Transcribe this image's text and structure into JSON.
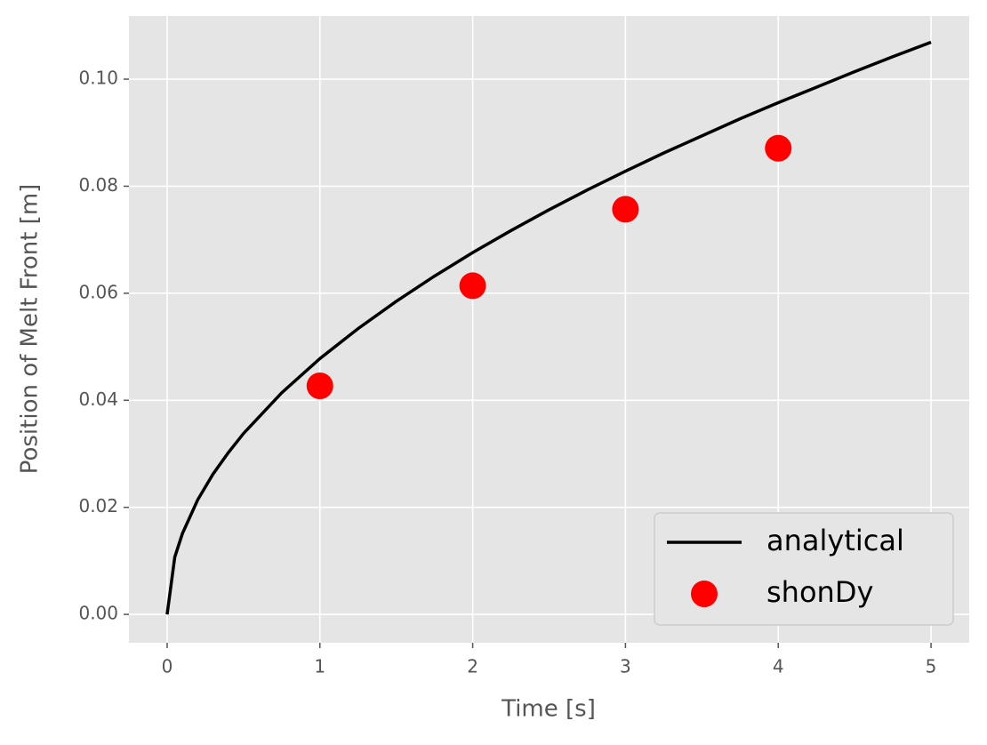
{
  "chart_data": {
    "type": "line",
    "xlabel": "Time [s]",
    "ylabel": "Position of Melt Front [m]",
    "xlim": [
      -0.25,
      5.25
    ],
    "ylim": [
      -0.0053,
      0.1118
    ],
    "xticks": [
      0,
      1,
      2,
      3,
      4,
      5
    ],
    "yticks": [
      {
        "value": 0,
        "label": "0.00"
      },
      {
        "value": 0.02,
        "label": "0.02"
      },
      {
        "value": 0.04,
        "label": "0.04"
      },
      {
        "value": 0.06,
        "label": "0.06"
      },
      {
        "value": 0.08,
        "label": "0.08"
      },
      {
        "value": 0.1,
        "label": "0.10"
      }
    ],
    "grid": true,
    "legend": "lower right",
    "series": [
      {
        "name": "analytical",
        "color": "#000000",
        "style": "line",
        "x": [
          0,
          0.05,
          0.1,
          0.2,
          0.3,
          0.4,
          0.5,
          0.75,
          1,
          1.25,
          1.5,
          1.75,
          2,
          2.25,
          2.5,
          2.75,
          3,
          3.25,
          3.5,
          3.75,
          4,
          4.25,
          4.5,
          4.75,
          5
        ],
        "values": [
          0,
          0.0107,
          0.0151,
          0.0214,
          0.0262,
          0.0302,
          0.0338,
          0.0414,
          0.0478,
          0.0534,
          0.0585,
          0.0632,
          0.0676,
          0.0717,
          0.0756,
          0.0793,
          0.0828,
          0.0862,
          0.0894,
          0.0926,
          0.0956,
          0.0985,
          0.1014,
          0.1042,
          0.1069
        ]
      },
      {
        "name": "shonDy",
        "color": "#ff0000",
        "style": "markers",
        "x": [
          1,
          2,
          3,
          4
        ],
        "values": [
          0.0427,
          0.0614,
          0.0757,
          0.0871
        ]
      }
    ]
  }
}
